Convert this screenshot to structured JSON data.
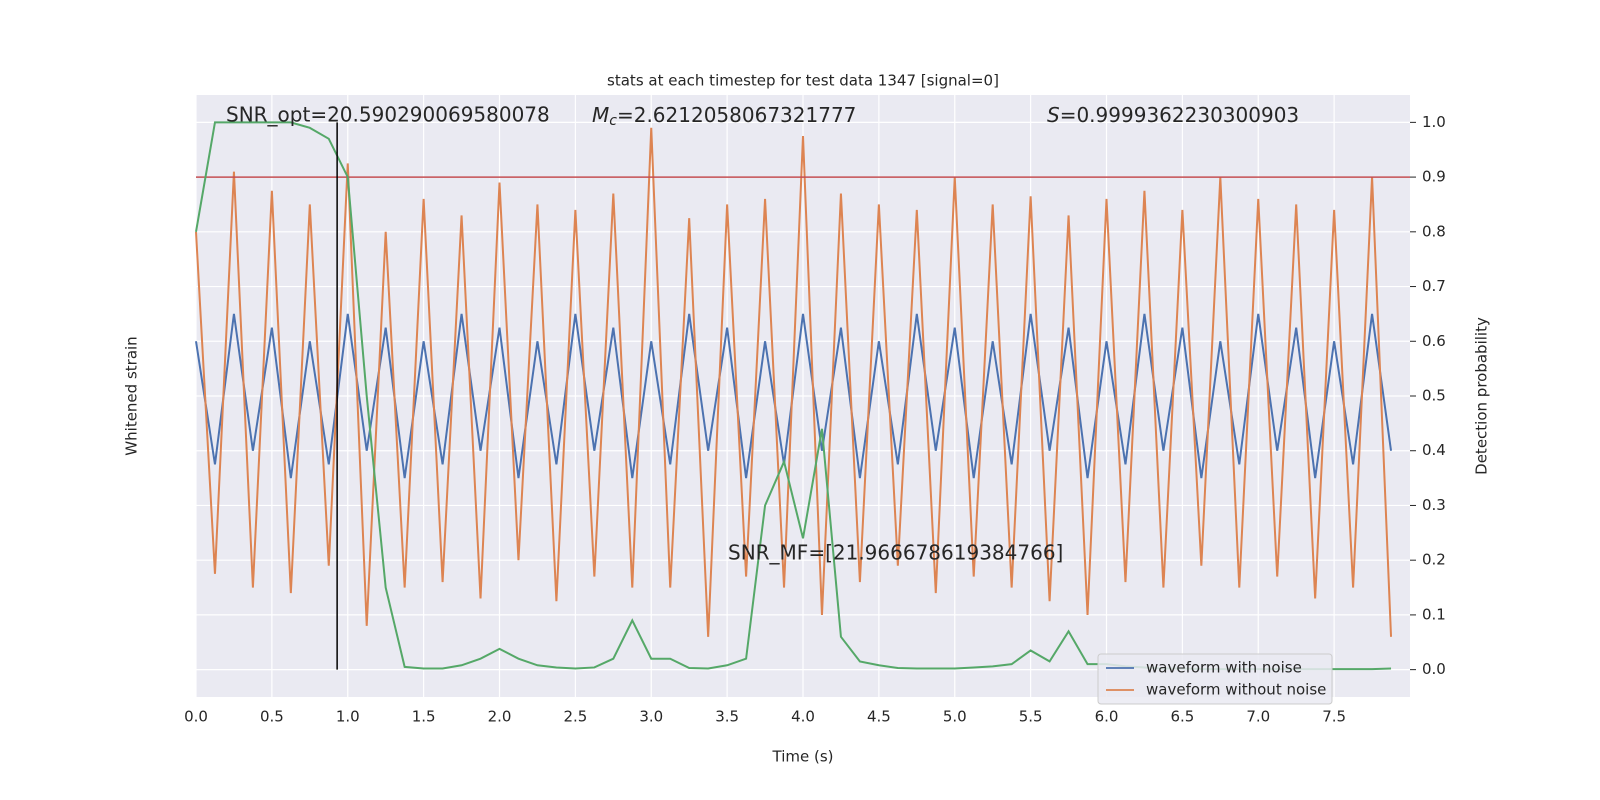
{
  "chart_data": {
    "type": "line",
    "title": "stats at each timestep for test data 1347 [signal=0]",
    "x_label": "Time (s)",
    "y_label": "Whitened strain",
    "y2_label": "Detection probability",
    "xlim": [
      0,
      8
    ],
    "xticks": [
      {
        "value": 0,
        "label": "0.0"
      },
      {
        "value": 0.5,
        "label": "0.5"
      },
      {
        "value": 1,
        "label": "1.0"
      },
      {
        "value": 1.5,
        "label": "1.5"
      },
      {
        "value": 2,
        "label": "2.0"
      },
      {
        "value": 2.5,
        "label": "2.5"
      },
      {
        "value": 3,
        "label": "3.0"
      },
      {
        "value": 3.5,
        "label": "3.5"
      },
      {
        "value": 4,
        "label": "4.0"
      },
      {
        "value": 4.5,
        "label": "4.5"
      },
      {
        "value": 5,
        "label": "5.0"
      },
      {
        "value": 5.5,
        "label": "5.5"
      },
      {
        "value": 6,
        "label": "6.0"
      },
      {
        "value": 6.5,
        "label": "6.5"
      },
      {
        "value": 7,
        "label": "7.0"
      },
      {
        "value": 7.5,
        "label": "7.5"
      }
    ],
    "ylim": [
      -1.1,
      1.1
    ],
    "y2lim": [
      -0.05,
      1.05
    ],
    "y2ticks": [
      {
        "value": 0,
        "label": "0.0"
      },
      {
        "value": 0.1,
        "label": "0.1"
      },
      {
        "value": 0.2,
        "label": "0.2"
      },
      {
        "value": 0.3,
        "label": "0.3"
      },
      {
        "value": 0.4,
        "label": "0.4"
      },
      {
        "value": 0.5,
        "label": "0.5"
      },
      {
        "value": 0.6,
        "label": "0.6"
      },
      {
        "value": 0.7,
        "label": "0.7"
      },
      {
        "value": 0.8,
        "label": "0.8"
      },
      {
        "value": 0.9,
        "label": "0.9"
      },
      {
        "value": 1,
        "label": "1.0"
      }
    ],
    "grid": true,
    "legend": "lower right",
    "x": [
      0,
      0.125,
      0.25,
      0.375,
      0.5,
      0.625,
      0.75,
      0.875,
      1,
      1.125,
      1.25,
      1.375,
      1.5,
      1.625,
      1.75,
      1.875,
      2,
      2.125,
      2.25,
      2.375,
      2.5,
      2.625,
      2.75,
      2.875,
      3,
      3.125,
      3.25,
      3.375,
      3.5,
      3.625,
      3.75,
      3.875,
      4,
      4.125,
      4.25,
      4.375,
      4.5,
      4.625,
      4.75,
      4.875,
      5,
      5.125,
      5.25,
      5.375,
      5.5,
      5.625,
      5.75,
      5.875,
      6,
      6.125,
      6.25,
      6.375,
      6.5,
      6.625,
      6.75,
      6.875,
      7,
      7.125,
      7.25,
      7.375,
      7.5,
      7.625,
      7.75,
      7.875
    ],
    "series": [
      {
        "name": "waveform with noise",
        "color": "#4c72b0",
        "axis": "y",
        "values": [
          0.2,
          -0.25,
          0.3,
          -0.2,
          0.25,
          -0.3,
          0.2,
          -0.25,
          0.3,
          -0.2,
          0.25,
          -0.3,
          0.2,
          -0.25,
          0.3,
          -0.2,
          0.25,
          -0.3,
          0.2,
          -0.25,
          0.3,
          -0.2,
          0.25,
          -0.3,
          0.2,
          -0.25,
          0.3,
          -0.2,
          0.25,
          -0.3,
          0.2,
          -0.25,
          0.3,
          -0.2,
          0.25,
          -0.3,
          0.2,
          -0.25,
          0.3,
          -0.2,
          0.25,
          -0.3,
          0.2,
          -0.25,
          0.3,
          -0.2,
          0.25,
          -0.3,
          0.2,
          -0.25,
          0.3,
          -0.2,
          0.25,
          -0.3,
          0.2,
          -0.25,
          0.3,
          -0.2,
          0.25,
          -0.3,
          0.2,
          -0.25,
          0.3,
          -0.2
        ]
      },
      {
        "name": "waveform without noise",
        "color": "#dd8452",
        "axis": "y",
        "values": [
          0.6,
          -0.65,
          0.82,
          -0.7,
          0.75,
          -0.72,
          0.7,
          -0.62,
          0.85,
          -0.84,
          0.6,
          -0.7,
          0.72,
          -0.68,
          0.66,
          -0.74,
          0.78,
          -0.6,
          0.7,
          -0.75,
          0.68,
          -0.66,
          0.74,
          -0.7,
          0.98,
          -0.7,
          0.65,
          -0.88,
          0.7,
          -0.66,
          0.72,
          -0.7,
          0.95,
          -0.8,
          0.74,
          -0.68,
          0.7,
          -0.62,
          0.68,
          -0.72,
          0.8,
          -0.66,
          0.7,
          -0.7,
          0.73,
          -0.75,
          0.66,
          -0.8,
          0.72,
          -0.68,
          0.75,
          -0.7,
          0.68,
          -0.62,
          0.8,
          -0.7,
          0.72,
          -0.66,
          0.7,
          -0.74,
          0.68,
          -0.7,
          0.8,
          -0.88
        ]
      }
    ],
    "probability": {
      "color": "#55a868",
      "axis": "y2",
      "values": [
        0.8,
        1.0,
        1.0,
        1.0,
        1.0,
        1.0,
        0.99,
        0.97,
        0.9,
        0.5,
        0.15,
        0.005,
        0.002,
        0.002,
        0.008,
        0.02,
        0.038,
        0.02,
        0.008,
        0.004,
        0.002,
        0.004,
        0.02,
        0.09,
        0.02,
        0.02,
        0.003,
        0.002,
        0.008,
        0.02,
        0.3,
        0.38,
        0.24,
        0.44,
        0.06,
        0.015,
        0.008,
        0.003,
        0.002,
        0.002,
        0.002,
        0.004,
        0.006,
        0.01,
        0.035,
        0.015,
        0.07,
        0.01,
        0.01,
        0.006,
        0.004,
        0.002,
        0.002,
        0.001,
        0.001,
        0.001,
        0.001,
        0.001,
        0.001,
        0.001,
        0.001,
        0.001,
        0.001,
        0.002
      ]
    },
    "threshold": {
      "value": 0.9,
      "color": "#c44e52"
    },
    "marker_x": 0.93,
    "annotations": {
      "snr_opt": "SNR_opt=20.590290069580078",
      "mc_symbol": "M",
      "mc_sub": "c",
      "mc_value": "=2.6212058067321777",
      "s_symbol": "S",
      "s_value": "=0.9999362230300903",
      "snr_mf": "SNR_MF=[21.966678619384766]"
    }
  }
}
